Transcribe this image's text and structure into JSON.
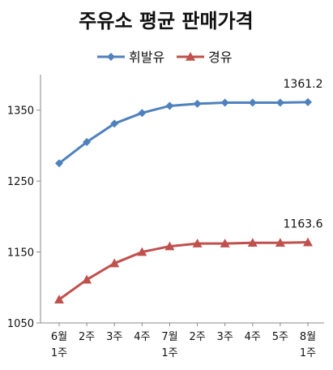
{
  "chart_data": {
    "type": "line",
    "title": "주유소 평균 판매가격",
    "xlabel": "",
    "ylabel": "",
    "categories": [
      [
        "6월",
        "1주"
      ],
      [
        "2주"
      ],
      [
        "3주"
      ],
      [
        "4주"
      ],
      [
        "7월",
        "1주"
      ],
      [
        "2주"
      ],
      [
        "3주"
      ],
      [
        "4주"
      ],
      [
        "5주"
      ],
      [
        "8월",
        "1주"
      ]
    ],
    "y_ticks": [
      1050,
      1150,
      1250,
      1350
    ],
    "ylim": [
      1050,
      1400
    ],
    "grid": false,
    "legend_position": "top",
    "series": [
      {
        "name": "휘발유",
        "color": "#4F81BD",
        "marker": "diamond",
        "values": [
          1275,
          1305,
          1331,
          1346,
          1356,
          1359,
          1360.5,
          1360.5,
          1360.5,
          1361.2
        ]
      },
      {
        "name": "경유",
        "color": "#C0504D",
        "marker": "triangle",
        "values": [
          1083,
          1111,
          1134,
          1150,
          1158,
          1162,
          1162,
          1163,
          1163,
          1163.6
        ]
      }
    ],
    "annotations": [
      {
        "series_index": 0,
        "point_index": 9,
        "text": "1361.2"
      },
      {
        "series_index": 1,
        "point_index": 9,
        "text": "1163.6"
      }
    ]
  }
}
